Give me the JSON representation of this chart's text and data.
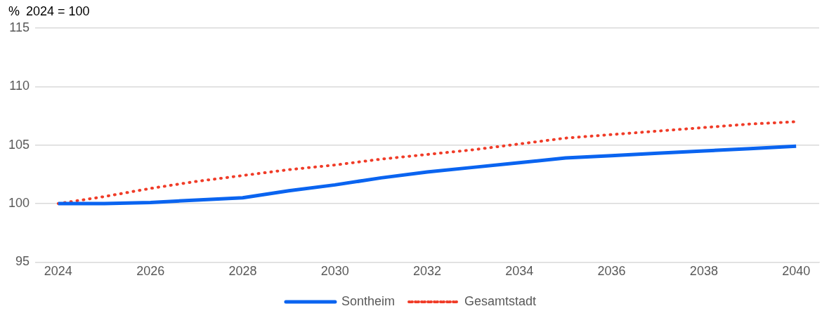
{
  "chart_data": {
    "type": "line",
    "ylabel": "%  2024 = 100",
    "x": [
      2024,
      2025,
      2026,
      2027,
      2028,
      2029,
      2030,
      2031,
      2032,
      2033,
      2034,
      2035,
      2036,
      2037,
      2038,
      2039,
      2040
    ],
    "series": [
      {
        "name": "Sontheim",
        "color": "#0a64f0",
        "line_style": "solid",
        "values": [
          100,
          100,
          100.1,
          100.3,
          100.5,
          101.1,
          101.6,
          102.2,
          102.7,
          103.1,
          103.5,
          103.9,
          104.1,
          104.3,
          104.5,
          104.7,
          104.9
        ]
      },
      {
        "name": "Gesamtstadt",
        "color": "#f03c28",
        "line_style": "dotted",
        "values": [
          100,
          100.6,
          101.3,
          101.9,
          102.4,
          102.9,
          103.3,
          103.8,
          104.2,
          104.6,
          105.1,
          105.6,
          105.9,
          106.2,
          106.5,
          106.8,
          107
        ]
      }
    ],
    "xlim": [
      2023.5,
      2040.5
    ],
    "xticks": [
      2024,
      2026,
      2028,
      2030,
      2032,
      2034,
      2036,
      2038,
      2040
    ],
    "ylim": [
      95,
      115
    ],
    "yticks": [
      95,
      100,
      105,
      110,
      115
    ],
    "grid": "y",
    "legend": "bottom",
    "marker": "none"
  }
}
